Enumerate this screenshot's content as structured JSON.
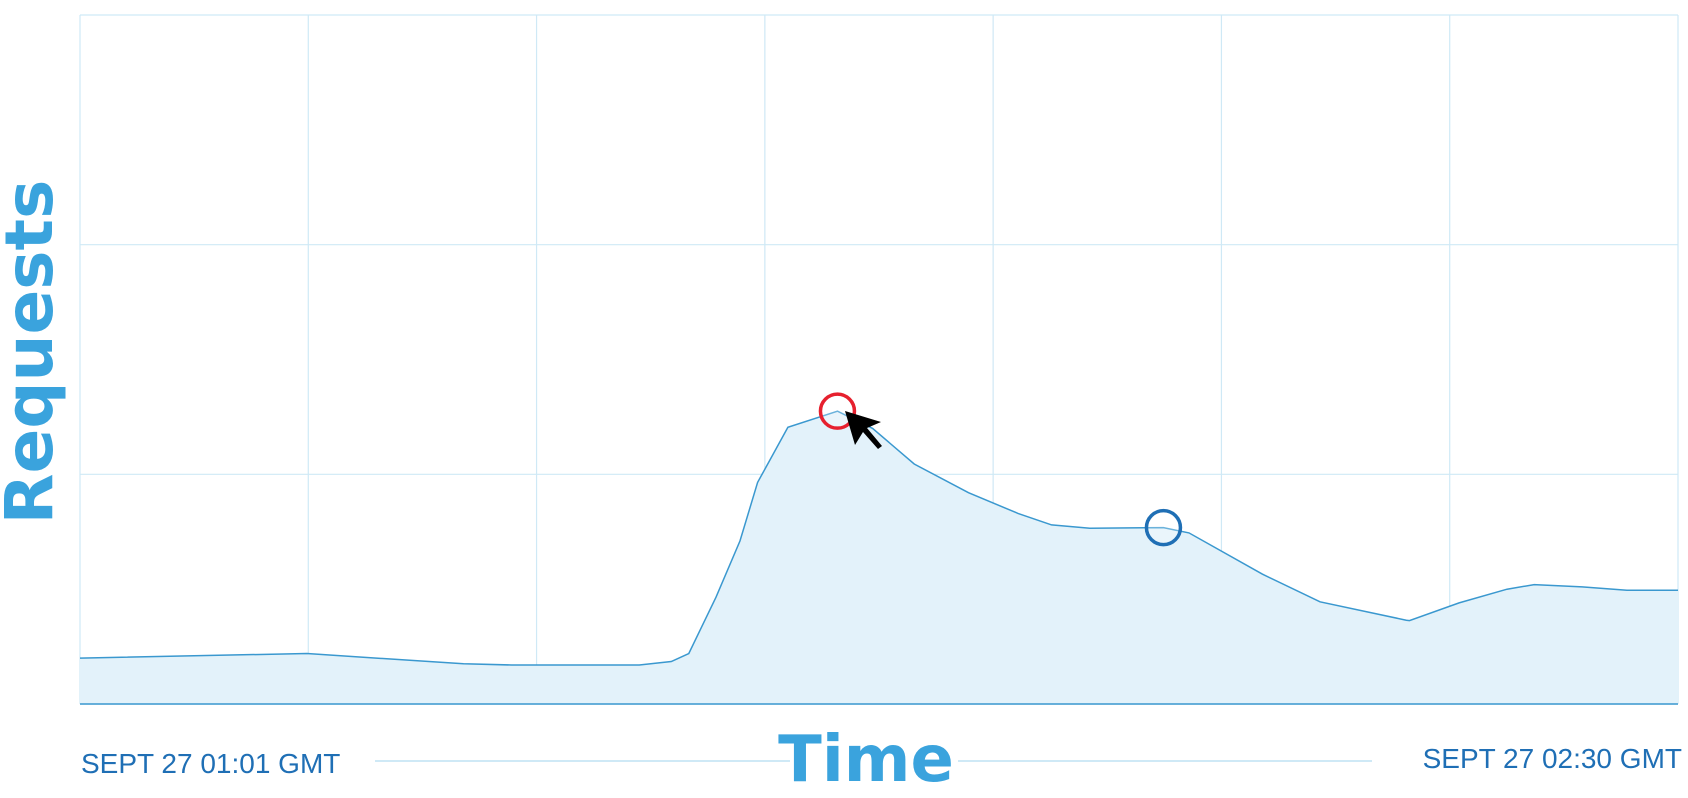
{
  "chart_data": {
    "type": "area",
    "ylabel": "Requests",
    "xlabel": "Time",
    "x_start_label": "SEPT 27 01:01 GMT",
    "x_end_label": "SEPT 27 02:30 GMT",
    "grid": true,
    "xlim": [
      0,
      1
    ],
    "ylim": [
      0,
      3
    ],
    "series": [
      {
        "points": [
          [
            0.0,
            0.2
          ],
          [
            0.142,
            0.22
          ],
          [
            0.24,
            0.175
          ],
          [
            0.27,
            0.17
          ],
          [
            0.35,
            0.17
          ],
          [
            0.37,
            0.185
          ],
          [
            0.381,
            0.22
          ],
          [
            0.398,
            0.465
          ],
          [
            0.413,
            0.71
          ],
          [
            0.424,
            0.965
          ],
          [
            0.443,
            1.205
          ],
          [
            0.474,
            1.275
          ],
          [
            0.496,
            1.2
          ],
          [
            0.522,
            1.045
          ],
          [
            0.556,
            0.92
          ],
          [
            0.587,
            0.83
          ],
          [
            0.608,
            0.78
          ],
          [
            0.632,
            0.765
          ],
          [
            0.678,
            0.768
          ],
          [
            0.694,
            0.745
          ],
          [
            0.74,
            0.565
          ],
          [
            0.776,
            0.445
          ],
          [
            0.83,
            0.365
          ],
          [
            0.832,
            0.363
          ],
          [
            0.863,
            0.44
          ],
          [
            0.893,
            0.5
          ],
          [
            0.91,
            0.52
          ],
          [
            0.94,
            0.51
          ],
          [
            0.968,
            0.495
          ],
          [
            1.0,
            0.495
          ]
        ]
      }
    ],
    "markers": [
      {
        "x": 0.474,
        "y": 1.275,
        "color": "#e6202e"
      },
      {
        "x": 0.678,
        "y": 0.768,
        "color": "#1f6fb5"
      }
    ]
  },
  "colors": {
    "grid": "#cfe9f6",
    "line": "#3a98cf",
    "fill": "#e3f2fa",
    "title_blue": "#3aa3dd",
    "label_blue": "#1f6fb5"
  },
  "icons": {
    "cursor": "mouse-cursor-icon"
  }
}
